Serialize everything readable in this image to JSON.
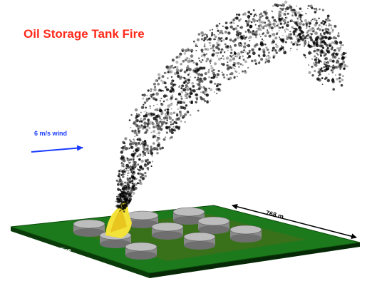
{
  "title": "Oil Storage Tank Fire",
  "labels": {
    "wind": "6 m/s wind",
    "distance": "768 m",
    "fire": "5.3 GW Fire"
  }
}
